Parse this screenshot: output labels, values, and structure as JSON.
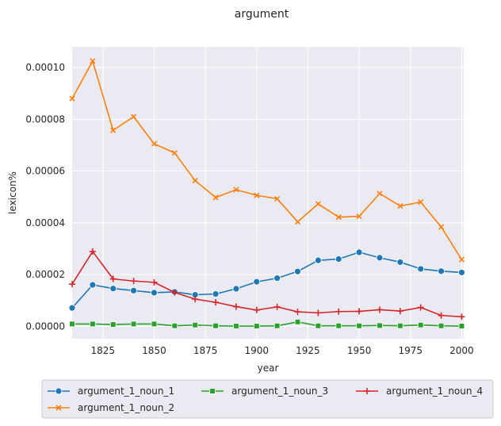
{
  "chart_data": {
    "type": "line",
    "title": "argument",
    "xlabel": "year",
    "ylabel": "lexicon%",
    "xlim": [
      1810,
      2001
    ],
    "ylim": [
      -4.8e-06,
      0.000108
    ],
    "x_ticks": [
      1825,
      1850,
      1875,
      1900,
      1925,
      1950,
      1975,
      2000
    ],
    "y_ticks": [
      0,
      2e-05,
      4e-05,
      6e-05,
      8e-05,
      0.0001
    ],
    "x_tick_labels": [
      "1825",
      "1850",
      "1875",
      "1900",
      "1925",
      "1950",
      "1975",
      "2000"
    ],
    "y_tick_labels": [
      "0.00000",
      "0.00002",
      "0.00004",
      "0.00006",
      "0.00008",
      "0.00010"
    ],
    "grid": true,
    "legend_position": "bottom",
    "x": [
      1810,
      1820,
      1830,
      1840,
      1850,
      1860,
      1870,
      1880,
      1890,
      1900,
      1910,
      1920,
      1930,
      1940,
      1950,
      1960,
      1970,
      1980,
      1990,
      2000
    ],
    "series": [
      {
        "name": "argument_1_noun_1",
        "color": "#1f77b4",
        "marker": "circle",
        "values": [
          7.1e-06,
          1.6e-05,
          1.46e-05,
          1.38e-05,
          1.3e-05,
          1.33e-05,
          1.22e-05,
          1.25e-05,
          1.45e-05,
          1.72e-05,
          1.86e-05,
          2.12e-05,
          2.55e-05,
          2.6e-05,
          2.86e-05,
          2.65e-05,
          2.48e-05,
          2.22e-05,
          2.13e-05,
          2.08e-05
        ]
      },
      {
        "name": "argument_1_noun_2",
        "color": "#ff7f0e",
        "marker": "x",
        "values": [
          8.8e-05,
          0.0001025,
          7.57e-05,
          8.1e-05,
          7.05e-05,
          6.7e-05,
          5.63e-05,
          4.98e-05,
          5.28e-05,
          5.06e-05,
          4.93e-05,
          4.04e-05,
          4.73e-05,
          4.22e-05,
          4.25e-05,
          5.13e-05,
          4.65e-05,
          4.8e-05,
          3.84e-05,
          2.58e-05
        ]
      },
      {
        "name": "argument_1_noun_3",
        "color": "#2ca02c",
        "marker": "square",
        "values": [
          9e-07,
          9e-07,
          7e-07,
          9e-07,
          9e-07,
          2e-07,
          5e-07,
          2e-07,
          1e-07,
          1e-07,
          2e-07,
          1.7e-06,
          2e-07,
          2e-07,
          2e-07,
          3e-07,
          2e-07,
          5e-07,
          2e-07,
          1e-07
        ]
      },
      {
        "name": "argument_1_noun_4",
        "color": "#d62728",
        "marker": "plus",
        "values": [
          1.63e-05,
          2.89e-05,
          1.83e-05,
          1.75e-05,
          1.7e-05,
          1.31e-05,
          1.05e-05,
          9.3e-06,
          7.6e-06,
          6.3e-06,
          7.5e-06,
          5.6e-06,
          5.2e-06,
          5.7e-06,
          5.8e-06,
          6.4e-06,
          5.9e-06,
          7.3e-06,
          4.2e-06,
          3.7e-06
        ]
      }
    ]
  },
  "colors": {
    "plot_background": "#eaeaf2",
    "grid": "#ffffff"
  }
}
